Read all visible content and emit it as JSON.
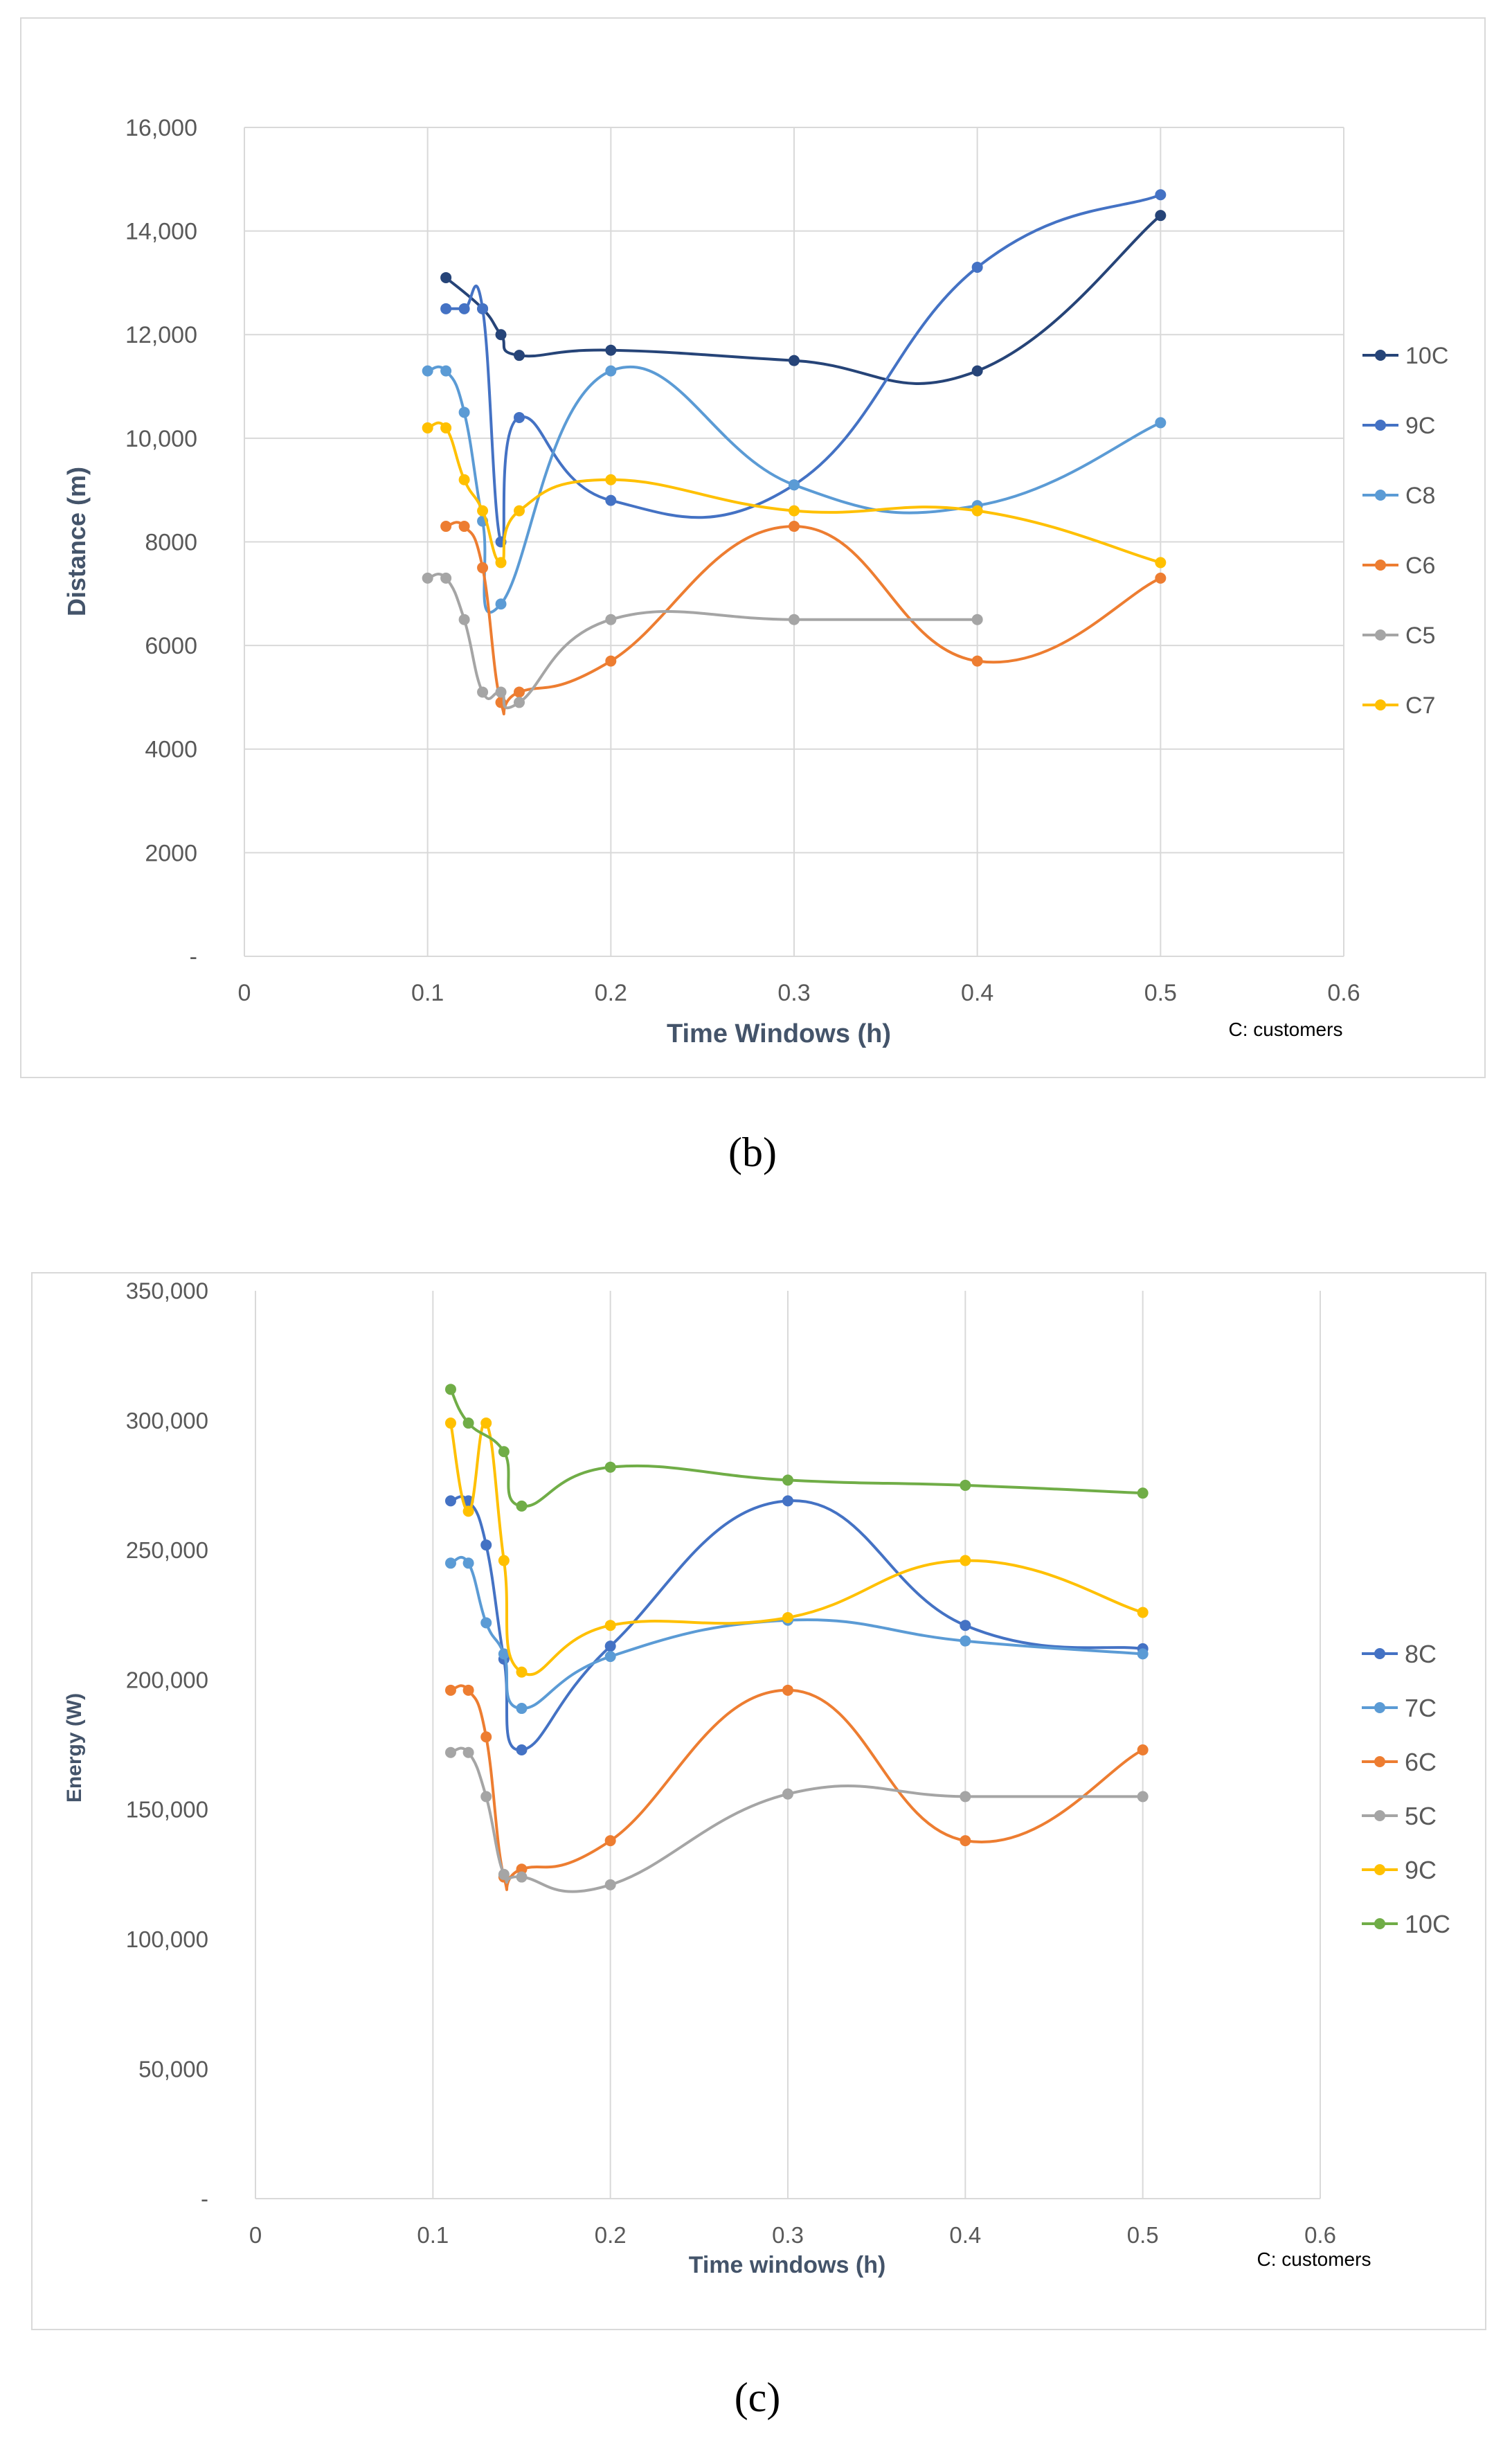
{
  "figures": [
    {
      "sub_label": "(b)",
      "colors": {
        "10C": "#264478",
        "9C": "#4472c4",
        "C8": "#5b9bd5",
        "C6": "#ed7d31",
        "C5": "#a5a5a5",
        "C7": "#ffc000"
      }
    },
    {
      "sub_label": "(c)",
      "colors": {
        "8C": "#4472c4",
        "7C": "#5b9bd5",
        "6C": "#ed7d31",
        "5C": "#a5a5a5",
        "9C": "#ffc000",
        "10C": "#70ad47"
      }
    }
  ],
  "chart_data": [
    {
      "type": "line",
      "title": "",
      "xlabel": "Time Windows (h)",
      "ylabel": "Distance (m)",
      "xlim": [
        0,
        0.6
      ],
      "ylim": [
        0,
        16000
      ],
      "x_ticks": [
        "0",
        "0.1",
        "0.2",
        "0.3",
        "0.4",
        "0.5",
        "0.6"
      ],
      "y_ticks": [
        "-",
        "2000",
        "4000",
        "6000",
        "8000",
        "10,000",
        "12,000",
        "14,000",
        "16,000"
      ],
      "note": "C: customers",
      "legend_position": "right",
      "series": [
        {
          "name": "10C",
          "x": [
            0.11,
            0.13,
            0.14,
            0.15,
            0.2,
            0.3,
            0.4,
            0.5
          ],
          "values": [
            13100,
            12500,
            12000,
            11600,
            11700,
            11500,
            11300,
            14300
          ]
        },
        {
          "name": "9C",
          "x": [
            0.11,
            0.12,
            0.13,
            0.14,
            0.15,
            0.2,
            0.3,
            0.4,
            0.5
          ],
          "values": [
            12500,
            12500,
            12500,
            8000,
            10400,
            8800,
            9100,
            13300,
            14700
          ]
        },
        {
          "name": "C8",
          "x": [
            0.1,
            0.11,
            0.12,
            0.13,
            0.14,
            0.2,
            0.3,
            0.4,
            0.5
          ],
          "values": [
            11300,
            11300,
            10500,
            8400,
            6800,
            11300,
            9100,
            8700,
            10300
          ]
        },
        {
          "name": "C6",
          "x": [
            0.11,
            0.12,
            0.13,
            0.14,
            0.15,
            0.2,
            0.3,
            0.4,
            0.5
          ],
          "values": [
            8300,
            8300,
            7500,
            4900,
            5100,
            5700,
            8300,
            5700,
            7300
          ]
        },
        {
          "name": "C5",
          "x": [
            0.1,
            0.11,
            0.12,
            0.13,
            0.14,
            0.15,
            0.2,
            0.3,
            0.4
          ],
          "values": [
            7300,
            7300,
            6500,
            5100,
            5100,
            4900,
            6500,
            6500,
            6500
          ]
        },
        {
          "name": "C7",
          "x": [
            0.1,
            0.11,
            0.12,
            0.13,
            0.14,
            0.15,
            0.2,
            0.3,
            0.4,
            0.5
          ],
          "values": [
            10200,
            10200,
            9200,
            8600,
            7600,
            8600,
            9200,
            8600,
            8600,
            7600
          ]
        }
      ]
    },
    {
      "type": "line",
      "title": "",
      "xlabel": "Time windows (h)",
      "ylabel": "Energy (W)",
      "xlim": [
        0,
        0.6
      ],
      "ylim": [
        0,
        350000
      ],
      "x_ticks": [
        "0",
        "0.1",
        "0.2",
        "0.3",
        "0.4",
        "0.5",
        "0.6"
      ],
      "y_ticks": [
        "-",
        "50,000",
        "100,000",
        "150,000",
        "200,000",
        "250,000",
        "300,000",
        "350,000"
      ],
      "note": "C: customers",
      "legend_position": "right",
      "series": [
        {
          "name": "8C",
          "x": [
            0.11,
            0.12,
            0.13,
            0.14,
            0.15,
            0.2,
            0.3,
            0.4,
            0.5
          ],
          "values": [
            269000,
            269000,
            252000,
            208000,
            173000,
            213000,
            269000,
            221000,
            212000
          ]
        },
        {
          "name": "7C",
          "x": [
            0.11,
            0.12,
            0.13,
            0.14,
            0.15,
            0.2,
            0.3,
            0.4,
            0.5
          ],
          "values": [
            245000,
            245000,
            222000,
            210000,
            189000,
            209000,
            223000,
            215000,
            210000
          ]
        },
        {
          "name": "6C",
          "x": [
            0.11,
            0.12,
            0.13,
            0.14,
            0.15,
            0.2,
            0.3,
            0.4,
            0.5
          ],
          "values": [
            196000,
            196000,
            178000,
            124000,
            127000,
            138000,
            196000,
            138000,
            173000
          ]
        },
        {
          "name": "5C",
          "x": [
            0.11,
            0.12,
            0.13,
            0.14,
            0.15,
            0.2,
            0.3,
            0.4,
            0.5
          ],
          "values": [
            172000,
            172000,
            155000,
            125000,
            124000,
            121000,
            156000,
            155000,
            155000
          ]
        },
        {
          "name": "9C",
          "x": [
            0.11,
            0.12,
            0.13,
            0.14,
            0.15,
            0.2,
            0.3,
            0.4,
            0.5
          ],
          "values": [
            299000,
            265000,
            299000,
            246000,
            203000,
            221000,
            224000,
            246000,
            226000
          ]
        },
        {
          "name": "10C",
          "x": [
            0.11,
            0.12,
            0.14,
            0.15,
            0.2,
            0.3,
            0.4,
            0.5
          ],
          "values": [
            312000,
            299000,
            288000,
            267000,
            282000,
            277000,
            275000,
            272000
          ]
        }
      ]
    }
  ]
}
